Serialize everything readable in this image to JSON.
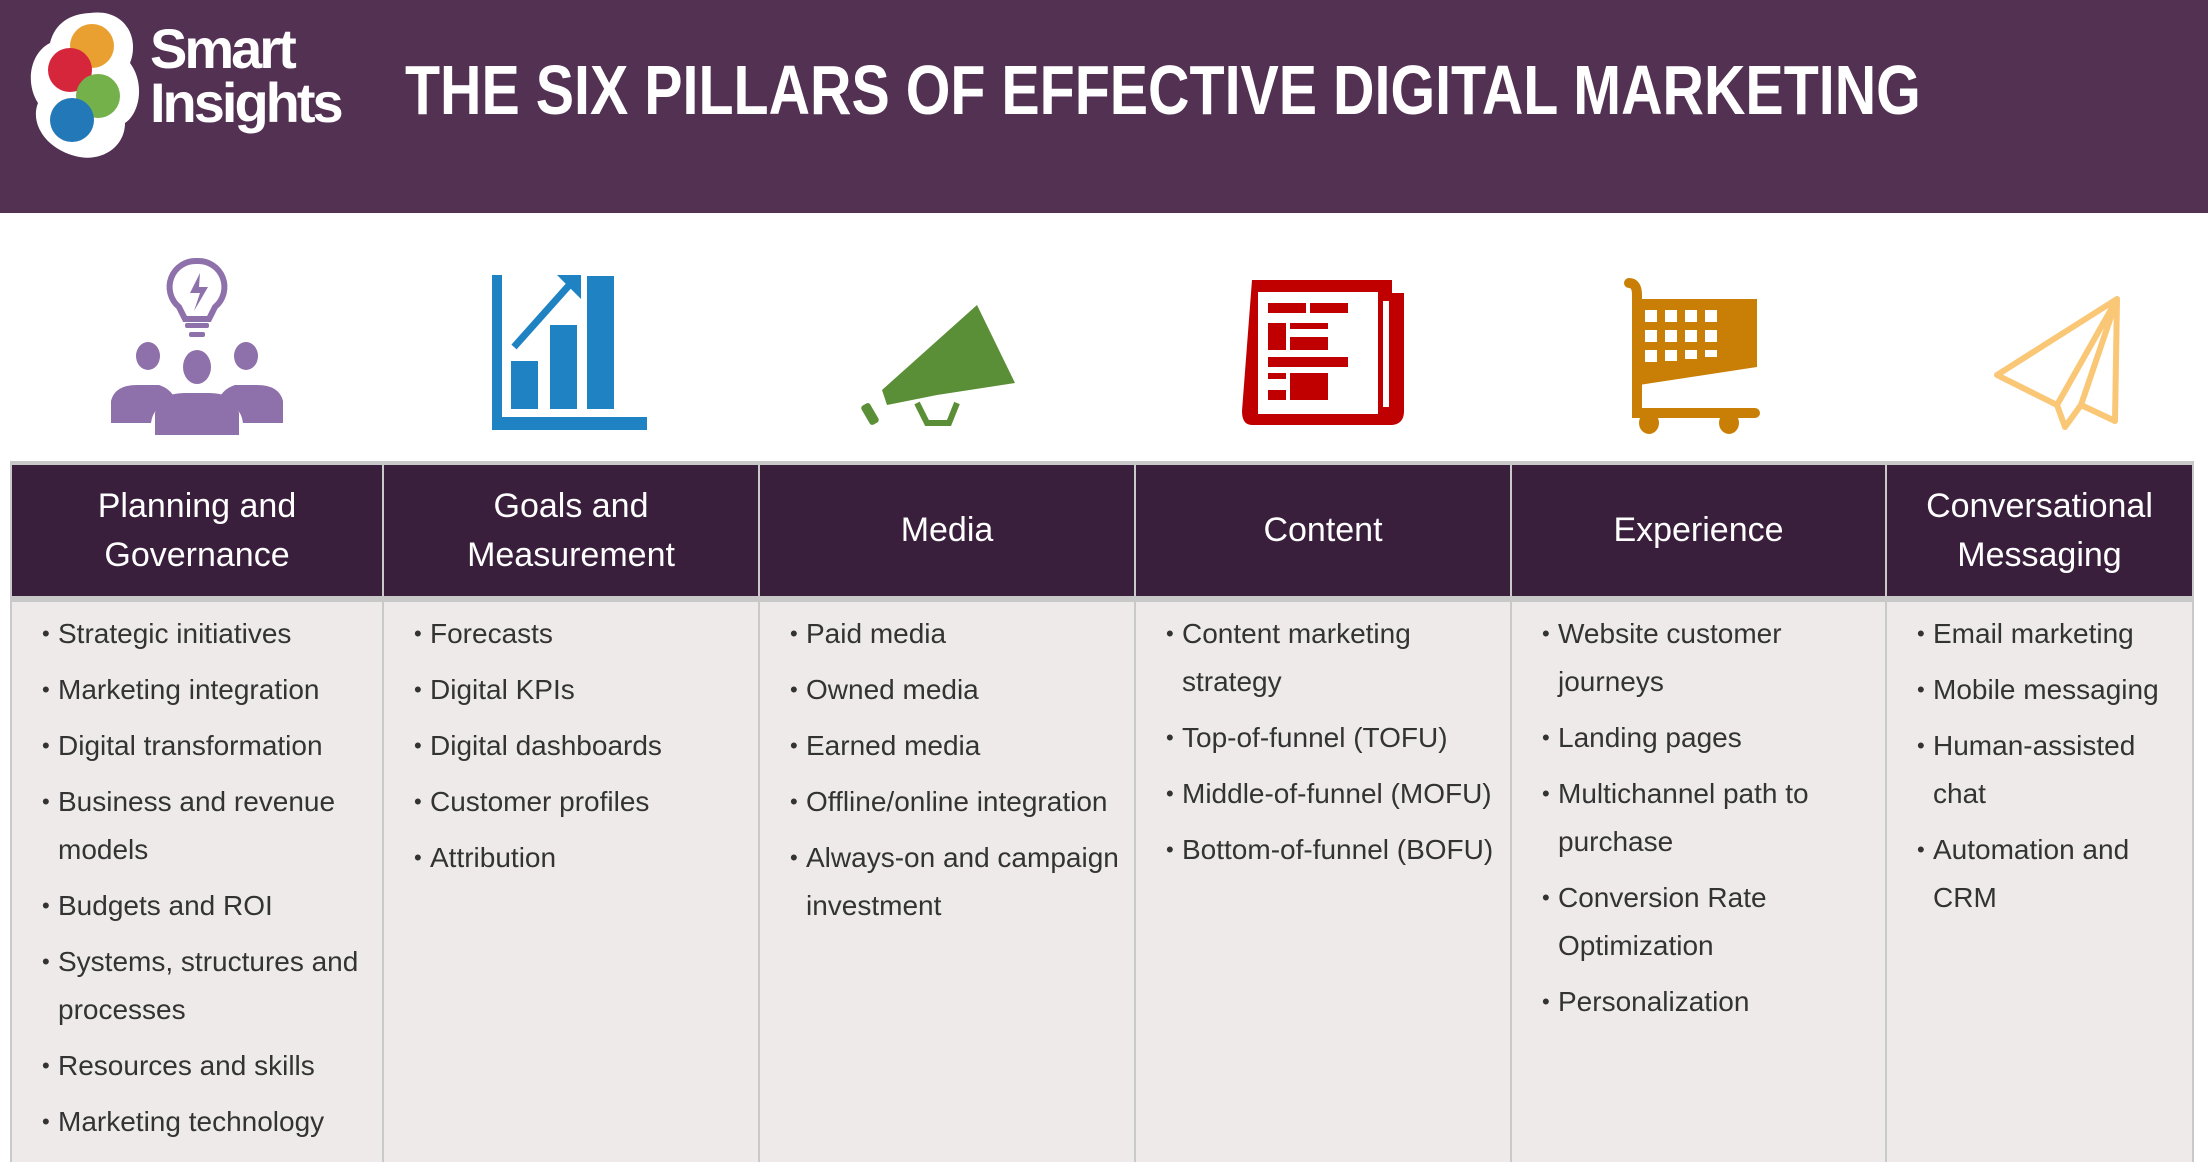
{
  "header": {
    "logo_text": [
      "Smart",
      "Insights"
    ],
    "title": "THE SIX PILLARS OF EFFECTIVE DIGITAL MARKETING",
    "background": "#533153"
  },
  "pillars": [
    {
      "title": "Planning and Governance",
      "icon": "people-lightbulb-icon",
      "color": "#8e70ab",
      "items": [
        "Strategic initiatives",
        "Marketing integration",
        "Digital transformation",
        "Business and revenue models",
        "Budgets and ROI",
        "Systems, structures and processes",
        "Resources and skills",
        "Marketing technology"
      ]
    },
    {
      "title": "Goals and Measurement",
      "icon": "bar-chart-arrow-icon",
      "color": "#1e82c3",
      "items": [
        "Forecasts",
        "Digital KPIs",
        "Digital dashboards",
        "Customer profiles",
        "Attribution"
      ]
    },
    {
      "title": "Media",
      "icon": "megaphone-icon",
      "color": "#5a8f37",
      "items": [
        "Paid media",
        "Owned media",
        "Earned media",
        "Offline/online integration",
        "Always-on and campaign investment"
      ]
    },
    {
      "title": "Content",
      "icon": "newspaper-icon",
      "color": "#c00000",
      "items": [
        "Content marketing strategy",
        "Top-of-funnel (TOFU)",
        "Middle-of-funnel (MOFU)",
        "Bottom-of-funnel (BOFU)"
      ]
    },
    {
      "title": "Experience",
      "icon": "shopping-cart-icon",
      "color": "#c97f06",
      "items": [
        "Website customer journeys",
        "Landing pages",
        "Multichannel path to purchase",
        "Conversion Rate Optimization",
        "Personalization"
      ]
    },
    {
      "title": "Conversational Messaging",
      "icon": "paper-plane-icon",
      "color": "#f9c776",
      "items": [
        "Email marketing",
        "Mobile messaging",
        "Human-assisted chat",
        "Automation and CRM"
      ]
    }
  ]
}
